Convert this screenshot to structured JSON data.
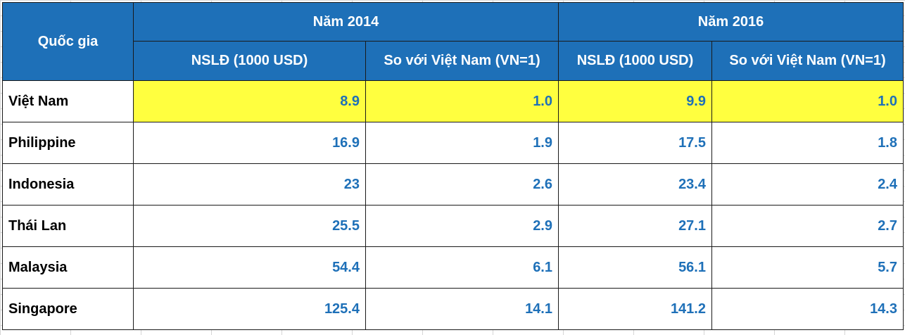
{
  "table": {
    "header": {
      "country_label": "Quốc gia",
      "groups": [
        {
          "label": "Năm 2014",
          "columns": [
            "NSLĐ (1000 USD)",
            "So với Việt Nam (VN=1)"
          ]
        },
        {
          "label": "Năm 2016",
          "columns": [
            "NSLĐ (1000 USD)",
            "So với Việt Nam (VN=1)"
          ]
        }
      ]
    },
    "rows": [
      {
        "country": "Việt Nam",
        "values": [
          "8.9",
          "1.0",
          "9.9",
          "1.0"
        ],
        "highlight": true
      },
      {
        "country": "Philippine",
        "values": [
          "16.9",
          "1.9",
          "17.5",
          "1.8"
        ],
        "highlight": false
      },
      {
        "country": "Indonesia",
        "values": [
          "23",
          "2.6",
          "23.4",
          "2.4"
        ],
        "highlight": false
      },
      {
        "country": "Thái Lan",
        "values": [
          "25.5",
          "2.9",
          "27.1",
          "2.7"
        ],
        "highlight": false
      },
      {
        "country": "Malaysia",
        "values": [
          "54.4",
          "6.1",
          "56.1",
          "5.7"
        ],
        "highlight": false
      },
      {
        "country": "Singapore",
        "values": [
          "125.4",
          "14.1",
          "141.2",
          "14.3"
        ],
        "highlight": false
      }
    ],
    "colors": {
      "header_bg": "#1e70b8",
      "header_text": "#ffffff",
      "value_text": "#1e70b8",
      "highlight_bg": "#ffff3f"
    }
  }
}
